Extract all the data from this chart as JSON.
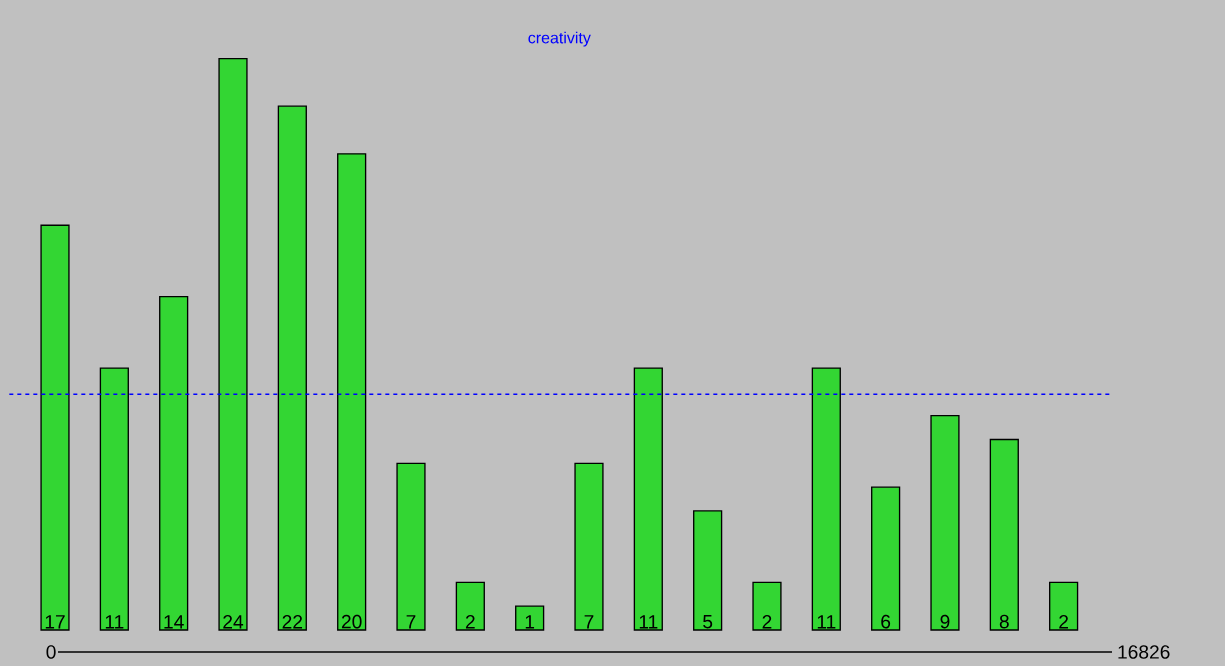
{
  "chart_data": {
    "type": "bar",
    "title": "creativity",
    "categories": [
      null,
      null,
      null,
      null,
      null,
      null,
      null,
      null,
      null,
      null,
      null,
      null,
      null,
      null,
      null,
      null,
      null,
      null
    ],
    "values": [
      17,
      11,
      14,
      24,
      22,
      20,
      7,
      2,
      1,
      7,
      11,
      5,
      2,
      11,
      6,
      9,
      8,
      2
    ],
    "color": "#33d633",
    "data_labels": true,
    "ref_lines": [
      {
        "axis": "y",
        "value": 9.9,
        "color": "#0000ff",
        "line_style": "dashed"
      }
    ],
    "annotations": [
      "0",
      "16826"
    ]
  }
}
